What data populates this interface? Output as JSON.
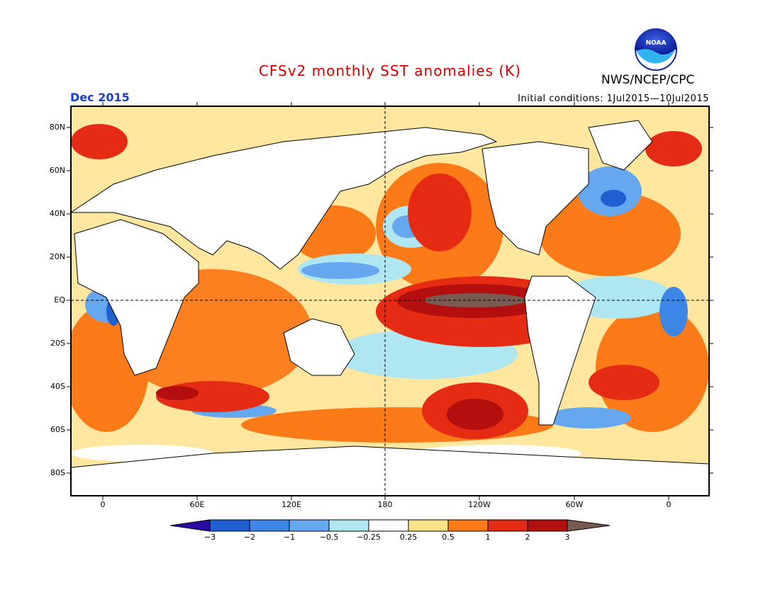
{
  "header": {
    "title": "CFSv2 monthly SST anomalies (K)",
    "agency": "NWS/NCEP/CPC",
    "logo_text": "NOAA",
    "month": "Dec 2015",
    "initial_conditions": "Initial conditions: 1Jul2015—10Jul2015"
  },
  "colors": {
    "title": "#d40000",
    "month": "#1a3fd0"
  },
  "axes": {
    "lat_labels": [
      "80N",
      "60N",
      "40N",
      "20N",
      "EQ",
      "20S",
      "40S",
      "60S",
      "80S"
    ],
    "lon_labels": [
      "0",
      "60E",
      "120E",
      "180",
      "120W",
      "60W",
      "0"
    ]
  },
  "colorbar": {
    "tick_labels": [
      "−3",
      "−2",
      "−1",
      "−0.5",
      "−0.25",
      "0.25",
      "0.5",
      "1",
      "2",
      "3"
    ],
    "colors": [
      "#2a0aa0",
      "#1f5fd0",
      "#3c86e8",
      "#66a8f0",
      "#aee6f2",
      "#ffffff",
      "#fce38a",
      "#fc7a18",
      "#e52b13",
      "#b30f0f",
      "#7a5a52"
    ]
  }
}
